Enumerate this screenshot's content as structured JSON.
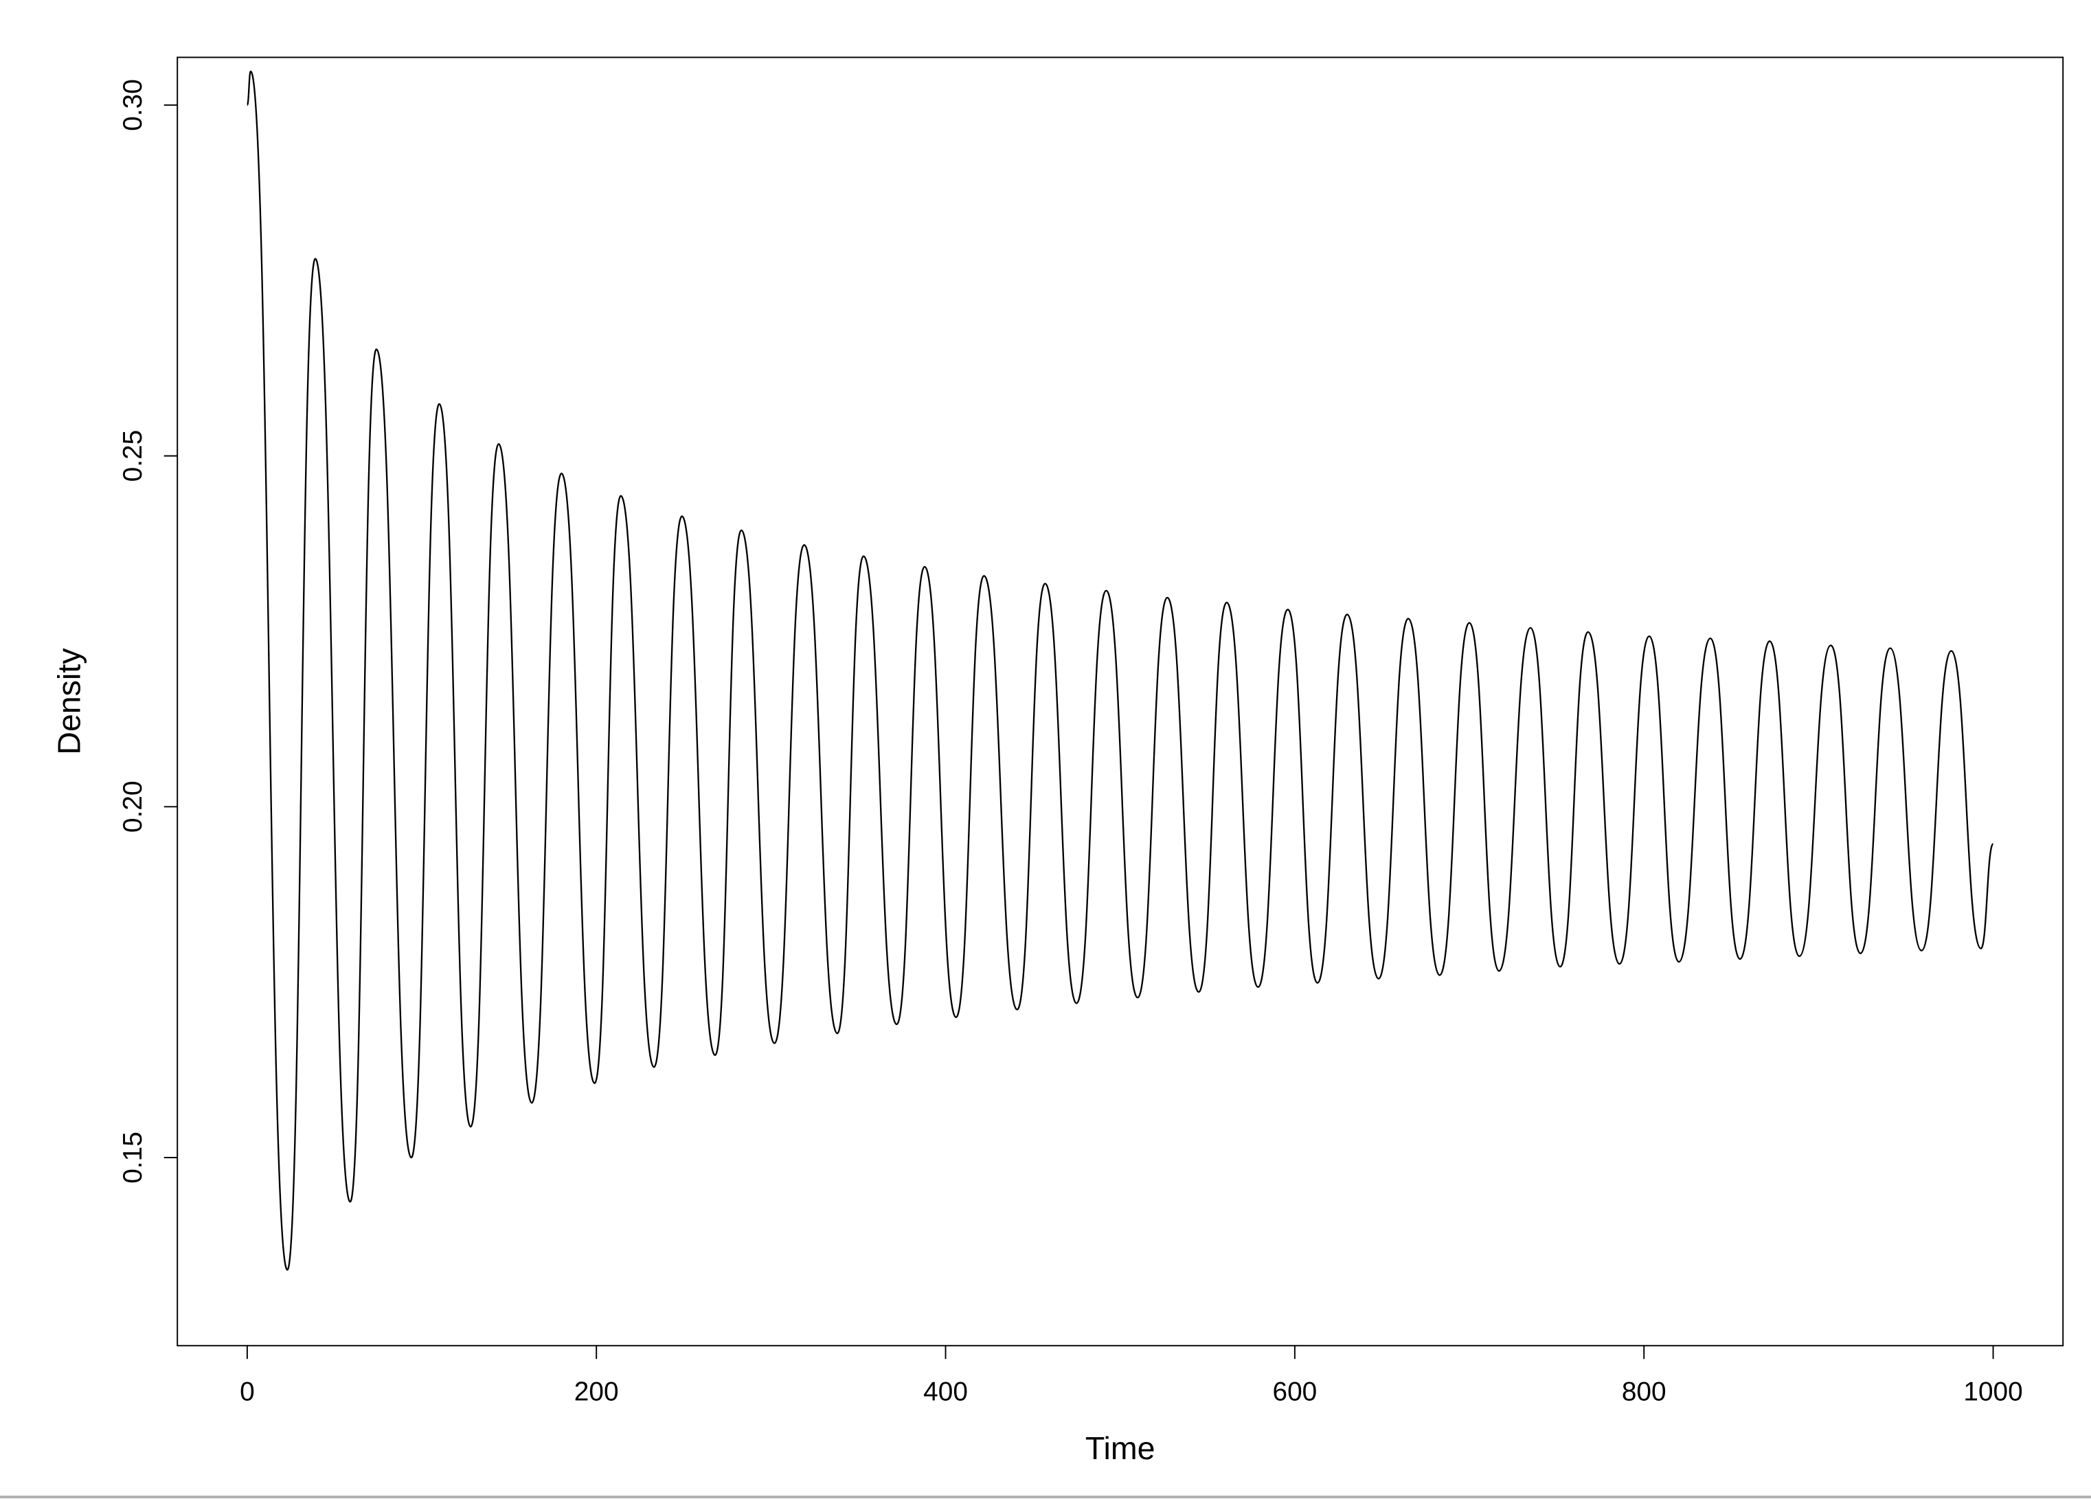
{
  "chart_data": {
    "type": "line",
    "x_label": "Time",
    "y_label": "Density",
    "xlim": [
      -40,
      1040
    ],
    "ylim": [
      0.1232,
      0.3068
    ],
    "xticks": [
      0,
      200,
      400,
      600,
      800,
      1000
    ],
    "yticks": [
      0.15,
      {
        "value": 0.2,
        "label": "0.20"
      },
      0.25,
      {
        "value": 0.3,
        "label": "0.30"
      }
    ],
    "color": "#000000",
    "x": [
      0,
      2,
      23,
      39,
      59,
      74,
      94,
      110,
      128,
      144,
      163,
      180,
      199,
      214,
      233,
      249,
      268,
      283,
      302,
      319,
      338,
      353,
      372,
      388,
      406,
      422,
      441,
      457,
      475,
      492,
      510,
      527,
      545,
      561,
      579,
      596,
      613,
      630,
      648,
      665,
      683,
      700,
      717,
      735,
      752,
      768,
      786,
      803,
      820,
      838,
      855,
      872,
      889,
      907,
      924,
      941,
      959,
      976,
      993,
      1000
    ],
    "values": [
      0.3,
      0.3048,
      0.134,
      0.2781,
      0.1437,
      0.2652,
      0.15,
      0.2574,
      0.1544,
      0.2517,
      0.1578,
      0.2475,
      0.1606,
      0.2443,
      0.1629,
      0.2414,
      0.1646,
      0.2394,
      0.1663,
      0.2373,
      0.1677,
      0.2357,
      0.169,
      0.2342,
      0.17,
      0.2329,
      0.1711,
      0.2318,
      0.172,
      0.2308,
      0.1728,
      0.2298,
      0.1736,
      0.2291,
      0.1743,
      0.2281,
      0.1749,
      0.2274,
      0.1755,
      0.2268,
      0.176,
      0.2262,
      0.1766,
      0.2255,
      0.1772,
      0.2249,
      0.1776,
      0.2243,
      0.1779,
      0.224,
      0.1783,
      0.2236,
      0.1787,
      0.223,
      0.1791,
      0.2226,
      0.1795,
      0.2222,
      0.1798,
      0.1947
    ]
  }
}
